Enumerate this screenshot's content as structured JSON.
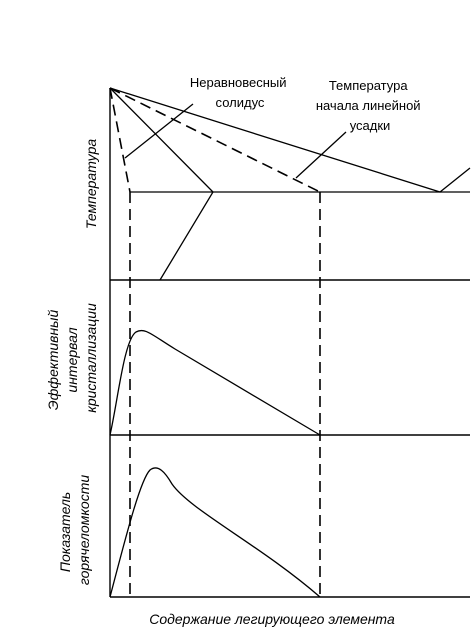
{
  "panels": {
    "temperature": {
      "ylabel": "Температура"
    },
    "interval": {
      "ylabel_lines": [
        "Эффективный",
        "интервал",
        "кристаллизации"
      ]
    },
    "hot_cracking": {
      "ylabel_lines": [
        "Показатель",
        "горячеломкости"
      ]
    }
  },
  "annotations": {
    "solidus_lines": [
      "Неравновесный",
      "солидус"
    ],
    "shrinkage_lines": [
      "Температура",
      "начала линейной",
      "усадки"
    ]
  },
  "xlabel": "Содержание легирующего элемента"
}
